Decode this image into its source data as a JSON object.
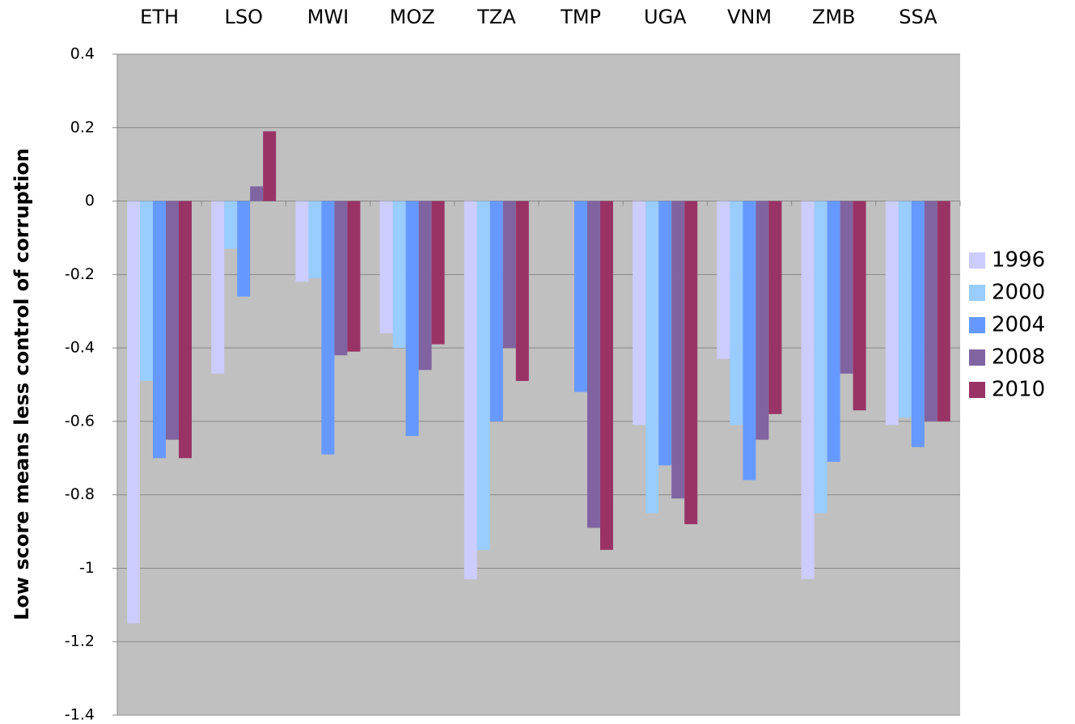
{
  "chart_data": {
    "type": "bar",
    "categories": [
      "ETH",
      "LSO",
      "MWI",
      "MOZ",
      "TZA",
      "TMP",
      "UGA",
      "VNM",
      "ZMB",
      "SSA"
    ],
    "y_label": "Low score means less control of corruption",
    "series": [
      {
        "name": "1996",
        "color": "#ccccff",
        "values": [
          -1.15,
          -0.47,
          -0.22,
          -0.36,
          -1.03,
          null,
          -0.61,
          -0.43,
          -1.03,
          -0.61
        ]
      },
      {
        "name": "2000",
        "color": "#99ccff",
        "values": [
          -0.49,
          -0.13,
          -0.21,
          -0.4,
          -0.95,
          null,
          -0.85,
          -0.61,
          -0.85,
          -0.59
        ]
      },
      {
        "name": "2004",
        "color": "#6699ff",
        "values": [
          -0.7,
          -0.26,
          -0.69,
          -0.64,
          -0.6,
          -0.52,
          -0.72,
          -0.76,
          -0.71,
          -0.67
        ]
      },
      {
        "name": "2008",
        "color": "#8064a2",
        "values": [
          -0.65,
          0.04,
          -0.42,
          -0.46,
          -0.4,
          -0.89,
          -0.81,
          -0.65,
          -0.47,
          -0.6
        ]
      },
      {
        "name": "2010",
        "color": "#993366",
        "values": [
          -0.7,
          0.19,
          -0.41,
          -0.39,
          -0.49,
          -0.95,
          -0.88,
          -0.58,
          -0.57,
          -0.6
        ]
      }
    ],
    "ylim": [
      -1.4,
      0.4
    ],
    "yticks": [
      0.4,
      0.2,
      0,
      -0.2,
      -0.4,
      -0.6,
      -0.8,
      -1,
      -1.2,
      -1.4
    ],
    "grid": true,
    "legend": "right"
  }
}
